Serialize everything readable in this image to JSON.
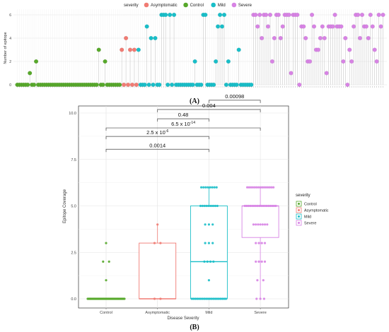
{
  "figure": {
    "panel_a_label": "(A)",
    "panel_b_label": "(B)"
  },
  "colors": {
    "control": "#57a82b",
    "asymptomatic": "#f07b73",
    "mild": "#19bec8",
    "severe": "#d783e4",
    "panel_bg": "#ffffff",
    "grid": "#e3e3e3",
    "frame": "#333333"
  },
  "chart_data": [
    {
      "type": "scatter",
      "subtype": "lollipop",
      "legend": {
        "title": "severity",
        "position": "top",
        "entries": [
          "Asymptomatic",
          "Control",
          "Mild",
          "Severe"
        ]
      },
      "ylabel": "Number of epitope",
      "xlabel": "",
      "ylim": [
        0,
        6
      ],
      "yticks": [
        0,
        2,
        4,
        6
      ],
      "grid": true,
      "groups": [
        {
          "name": "Control",
          "values": [
            0,
            0,
            0,
            0,
            0,
            0,
            1,
            0,
            0,
            2,
            0,
            0,
            0,
            0,
            0,
            0,
            0,
            0,
            0,
            0,
            0,
            0,
            0,
            0,
            0,
            0,
            0,
            0,
            0,
            0,
            0,
            0,
            0,
            0,
            0,
            0,
            0,
            0,
            0,
            3,
            0,
            0,
            2,
            0,
            0,
            0,
            0,
            0,
            0,
            0
          ]
        },
        {
          "name": "Asymptomatic",
          "values": [
            3,
            0,
            4,
            0,
            3,
            0,
            3,
            0
          ]
        },
        {
          "name": "Mild",
          "values": [
            3,
            0,
            0,
            0,
            5,
            0,
            4,
            0,
            4,
            0,
            0,
            6,
            6,
            6,
            0,
            6,
            0,
            6,
            0,
            0,
            0,
            0,
            0,
            0,
            0,
            0,
            0,
            2,
            0,
            0,
            0,
            6,
            6,
            0,
            0,
            0,
            0,
            2,
            5,
            6,
            5,
            6,
            0,
            2,
            0,
            0,
            0,
            0,
            3,
            0,
            0,
            0,
            0,
            0,
            0
          ]
        },
        {
          "name": "Severe",
          "values": [
            6,
            6,
            5,
            6,
            4,
            6,
            6,
            5,
            6,
            2,
            4,
            6,
            6,
            4,
            5,
            6,
            6,
            6,
            1,
            6,
            6,
            6,
            0,
            5,
            5,
            4,
            2,
            2,
            6,
            5,
            3,
            3,
            4,
            5,
            4,
            1,
            5,
            5,
            5,
            6,
            5,
            5,
            5,
            2,
            4,
            0,
            3,
            2,
            5,
            6,
            6,
            4,
            6,
            5,
            5,
            4,
            6,
            5,
            3,
            2,
            6,
            5,
            6
          ]
        }
      ]
    },
    {
      "type": "box",
      "xlabel": "Disease Severity",
      "ylabel": "Epitope Coverage",
      "ylim": [
        0,
        10.5
      ],
      "yticks": [
        "0.0",
        "2.5",
        "5.0",
        "7.5",
        "10.0"
      ],
      "categories": [
        "Control",
        "Asymptomatic",
        "Mild",
        "Severe"
      ],
      "legend": {
        "title": "severity",
        "position": "right",
        "entries": [
          "Control",
          "Asymptomatic",
          "Mild",
          "Severe"
        ]
      },
      "boxes": [
        {
          "name": "Control",
          "q1": 0,
          "median": 0,
          "q3": 0,
          "whisker_low": 0,
          "whisker_high": 0
        },
        {
          "name": "Asymptomatic",
          "q1": 0,
          "median": 0,
          "q3": 3,
          "whisker_low": 0,
          "whisker_high": 4
        },
        {
          "name": "Mild",
          "q1": 0,
          "median": 2,
          "q3": 5,
          "whisker_low": 0,
          "whisker_high": 6
        },
        {
          "name": "Severe",
          "q1": 3.3,
          "median": 5,
          "q3": 5,
          "whisker_low": 0,
          "whisker_high": 6
        }
      ],
      "points": [
        {
          "name": "Control",
          "counts": {
            "0": 45,
            "1": 1,
            "2": 2,
            "3": 1
          }
        },
        {
          "name": "Asymptomatic",
          "counts": {
            "0": 2,
            "3": 2,
            "4": 1
          }
        },
        {
          "name": "Mild",
          "counts": {
            "0": 20,
            "1": 1,
            "2": 4,
            "3": 3,
            "4": 3,
            "5": 9,
            "6": 8
          }
        },
        {
          "name": "Severe",
          "counts": {
            "0": 3,
            "1": 2,
            "2": 4,
            "3": 4,
            "4": 7,
            "5": 18,
            "6": 15
          }
        }
      ],
      "comparisons": [
        {
          "from": "Control",
          "to": "Mild",
          "label": "0.0014",
          "level": 8.05
        },
        {
          "from": "Control",
          "to": "Mild",
          "label": "2.5 x 10",
          "exp": "-6",
          "level": 8.74
        },
        {
          "from": "Control",
          "to": "Severe",
          "label": "6.5 x 10",
          "exp": "-14",
          "level": 9.2
        },
        {
          "from": "Asymptomatic",
          "to": "Mild",
          "label": "0.48",
          "level": 9.69
        },
        {
          "from": "Asymptomatic",
          "to": "Severe",
          "label": "0.004",
          "level": 10.19
        },
        {
          "from": "Mild",
          "to": "Severe",
          "label": "0.00098",
          "level": 10.69
        }
      ]
    }
  ]
}
